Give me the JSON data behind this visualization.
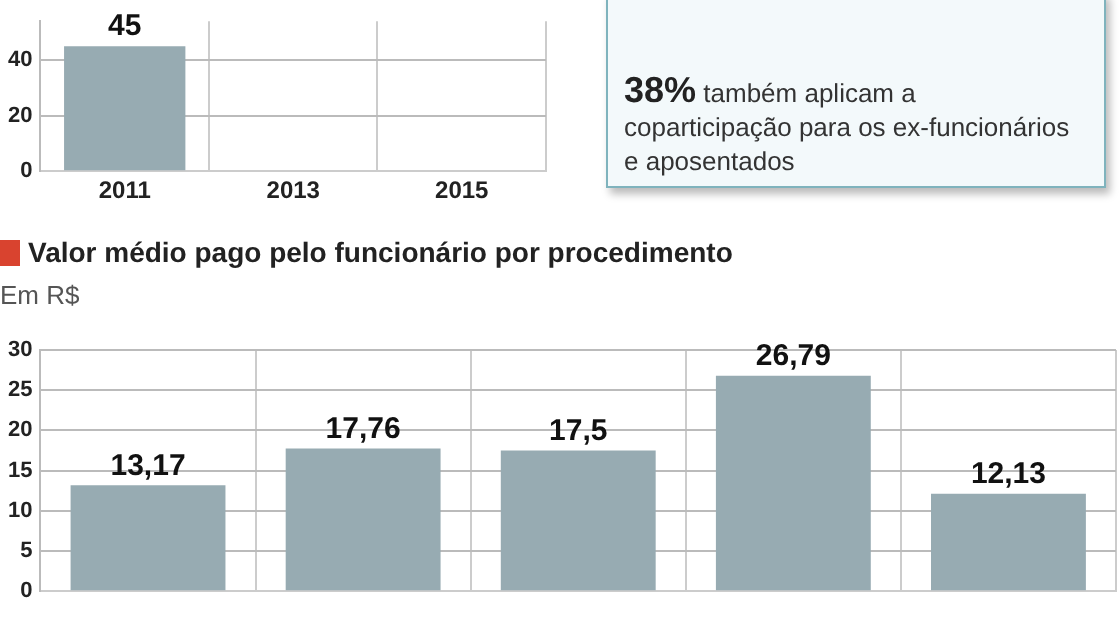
{
  "chart_data": [
    {
      "type": "bar",
      "categories": [
        "2011",
        "2013",
        "2015"
      ],
      "values": [
        45,
        null,
        null
      ],
      "value_labels": [
        "45",
        null,
        null
      ],
      "color": "#97abb2",
      "ylim": [
        0,
        54
      ],
      "yticks": [
        0,
        20,
        40
      ],
      "grid": true
    },
    {
      "type": "other",
      "title": "38%",
      "annotations": [
        "também aplicam a coparticipação para os ex-funcionários e aposentados"
      ]
    },
    {
      "type": "bar",
      "title": "Valor médio pago pelo funcionário por procedimento",
      "subtitle": "Em R$",
      "categories": [
        null,
        null,
        null,
        null,
        null
      ],
      "values": [
        13.17,
        17.76,
        17.5,
        26.79,
        12.13
      ],
      "value_labels": [
        "13,17",
        "17,76",
        "17,5",
        "26,79",
        "12,13"
      ],
      "color": "#97abb2",
      "ylim": [
        0,
        30
      ],
      "yticks": [
        0,
        5,
        10,
        15,
        20,
        25,
        30
      ],
      "grid": true
    }
  ]
}
